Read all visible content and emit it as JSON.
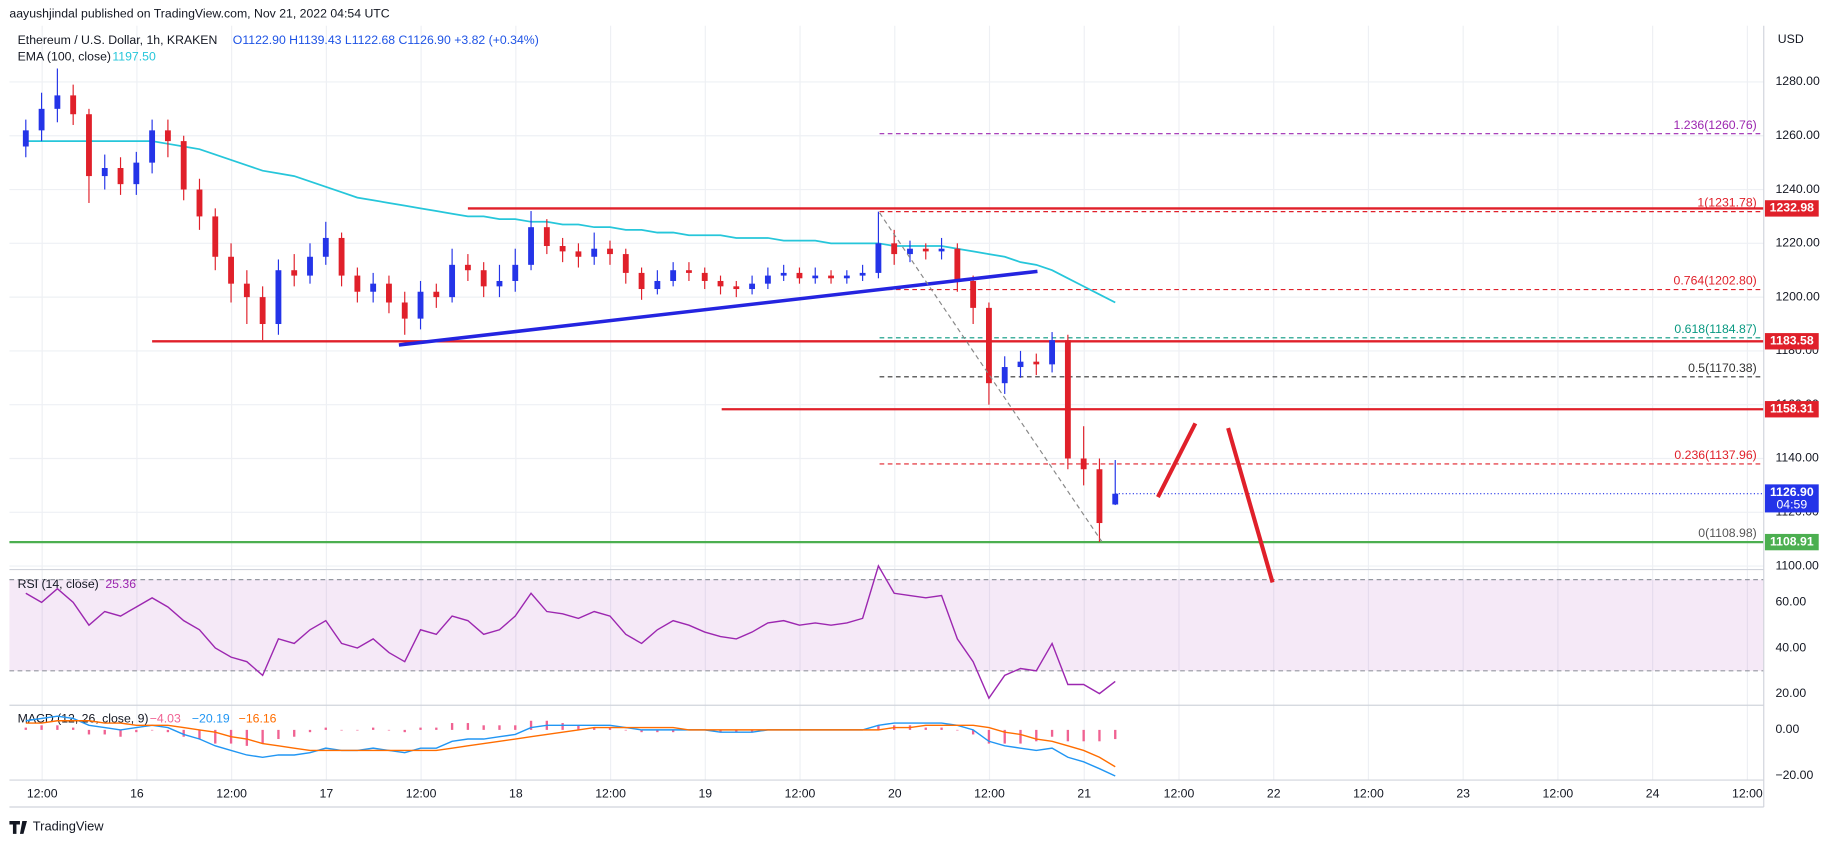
{
  "chart_data": {
    "type": "candlestick",
    "publisher": "aayushjindal published on TradingView.com, Nov 21, 2022 04:54 UTC",
    "symbol": "Ethereum / U.S. Dollar, 1h, KRAKEN",
    "ohlc_text": "O1122.90 H1139.43 L1122.68 C1126.90 +3.82 (+0.34%)",
    "currency": "USD",
    "footer": "TradingView",
    "up_color": "#2434e8",
    "down_color": "#e0202a",
    "categories": [
      "12:00",
      "16",
      "12:00",
      "17",
      "12:00",
      "18",
      "12:00",
      "19",
      "12:00",
      "20",
      "12:00",
      "21",
      "12:00",
      "22",
      "12:00",
      "23",
      "12:00",
      "24",
      "12:00"
    ],
    "ylim": [
      1098.7,
      1300.9
    ],
    "yticks": [
      {
        "value": 1280,
        "label": "1280.00"
      },
      {
        "value": 1260,
        "label": "1260.00"
      },
      {
        "value": 1240,
        "label": "1240.00"
      },
      {
        "value": 1220,
        "label": "1220.00"
      },
      {
        "value": 1200,
        "label": "1200.00"
      },
      {
        "value": 1180,
        "label": "1180.00"
      },
      {
        "value": 1160,
        "label": "1160.00"
      },
      {
        "value": 1140,
        "label": "1140.00"
      },
      {
        "value": 1120,
        "label": "1120.00"
      },
      {
        "value": 1100,
        "label": "1100.00"
      }
    ],
    "open": [
      1256,
      1262,
      1270,
      1275,
      1268,
      1245,
      1248,
      1242,
      1250,
      1262,
      1258,
      1240,
      1230,
      1215,
      1205,
      1200,
      1190,
      1210,
      1208,
      1215,
      1222,
      1208,
      1202,
      1205,
      1198,
      1192,
      1202,
      1200,
      1212,
      1210,
      1204,
      1206,
      1212,
      1226,
      1219,
      1217,
      1215,
      1218,
      1216,
      1209,
      1203,
      1206,
      1210,
      1209,
      1206,
      1204,
      1203,
      1205,
      1208,
      1209,
      1207,
      1208,
      1207,
      1208,
      1209,
      1220,
      1216,
      1218,
      1217,
      1218,
      1206,
      1196,
      1168,
      1174,
      1176,
      1175,
      1184,
      1140,
      1136,
      1122.9
    ],
    "high": [
      1266,
      1276,
      1285,
      1279,
      1270,
      1253,
      1252,
      1254,
      1266,
      1266,
      1260,
      1244,
      1233,
      1220,
      1210,
      1204,
      1214,
      1216,
      1220,
      1228,
      1224,
      1211,
      1209,
      1208,
      1202,
      1206,
      1205,
      1218,
      1216,
      1213,
      1212,
      1218,
      1232,
      1229,
      1222,
      1220,
      1224,
      1221,
      1218,
      1211,
      1210,
      1213,
      1213,
      1211,
      1208,
      1206,
      1208,
      1211,
      1212,
      1211,
      1211,
      1210,
      1210,
      1212,
      1231.78,
      1225,
      1221,
      1220,
      1222,
      1220,
      1208,
      1198,
      1178,
      1180,
      1179,
      1187,
      1186,
      1152,
      1140,
      1139.43
    ],
    "low": [
      1252,
      1258,
      1265,
      1264,
      1235,
      1240,
      1238,
      1238,
      1246,
      1252,
      1236,
      1225,
      1210,
      1198,
      1190,
      1184,
      1186,
      1204,
      1205,
      1212,
      1204,
      1198,
      1198,
      1194,
      1186,
      1188,
      1196,
      1198,
      1206,
      1200,
      1200,
      1202,
      1210,
      1216,
      1213,
      1211,
      1212,
      1212,
      1205,
      1199,
      1201,
      1204,
      1206,
      1203,
      1201,
      1200,
      1201,
      1203,
      1206,
      1205,
      1205,
      1205,
      1205,
      1206,
      1207,
      1212,
      1213,
      1214,
      1214,
      1202,
      1190,
      1160,
      1164,
      1170,
      1171,
      1172,
      1136,
      1130,
      1108.98,
      1122.68
    ],
    "close": [
      1262,
      1270,
      1275,
      1268,
      1245,
      1248,
      1242,
      1250,
      1262,
      1258,
      1240,
      1230,
      1215,
      1205,
      1200,
      1190,
      1210,
      1208,
      1215,
      1222,
      1208,
      1202,
      1205,
      1198,
      1192,
      1202,
      1200,
      1212,
      1210,
      1204,
      1206,
      1212,
      1226,
      1219,
      1217,
      1215,
      1218,
      1216,
      1209,
      1203,
      1206,
      1210,
      1209,
      1206,
      1204,
      1203,
      1205,
      1208,
      1209,
      1207,
      1208,
      1207,
      1208,
      1209,
      1220,
      1216,
      1218,
      1217,
      1218,
      1206,
      1196,
      1168,
      1174,
      1176,
      1175,
      1184,
      1140,
      1136,
      1116,
      1126.9
    ],
    "ema": {
      "name": "EMA (100, close)",
      "value_label": "1197.50",
      "color": "#26c6da",
      "values": [
        1258,
        1258,
        1258,
        1258,
        1258,
        1258,
        1258,
        1258,
        1258,
        1257,
        1256,
        1255,
        1253,
        1251,
        1249,
        1247,
        1246,
        1245,
        1243,
        1241,
        1239,
        1237,
        1236,
        1235,
        1234,
        1233,
        1232,
        1231,
        1230,
        1230,
        1229,
        1229,
        1228,
        1228,
        1227,
        1227,
        1226,
        1226,
        1225,
        1225,
        1224,
        1224,
        1223,
        1223,
        1223,
        1222,
        1222,
        1222,
        1221,
        1221,
        1221,
        1220,
        1220,
        1220,
        1220,
        1219,
        1219,
        1219,
        1219,
        1218,
        1217,
        1216,
        1215,
        1213,
        1212,
        1210,
        1207,
        1204,
        1201,
        1198
      ]
    },
    "current_price": {
      "value": 1126.9,
      "label": "1126.90",
      "countdown": "04:59"
    },
    "hlines": [
      {
        "value": 1232.98,
        "color": "#e0202a"
      },
      {
        "value": 1183.58,
        "color": "#e0202a"
      },
      {
        "value": 1158.31,
        "color": "#e0202a"
      },
      {
        "value": 1108.91,
        "color": "#4caf50"
      }
    ],
    "fib_levels": [
      {
        "value": 1260.76,
        "label": "1.236(1260.76)",
        "color": "#9c27b0"
      },
      {
        "value": 1231.78,
        "label": "1(1231.78)",
        "color": "#e0202a"
      },
      {
        "value": 1202.8,
        "label": "0.764(1202.80)",
        "color": "#e0202a"
      },
      {
        "value": 1184.87,
        "label": "0.618(1184.87)",
        "color": "#089981"
      },
      {
        "value": 1170.38,
        "label": "0.5(1170.38)",
        "color": "#333333"
      },
      {
        "value": 1137.96,
        "label": "0.236(1137.96)",
        "color": "#e0202a"
      },
      {
        "value": 1108.98,
        "label": "0(1108.98)",
        "color": "#555555"
      }
    ],
    "rsi": {
      "name": "RSI (14, close)",
      "value_label": "25.36",
      "color": "#9c27b0",
      "ylim": [
        14.9,
        74.4
      ],
      "bands": [
        70,
        30
      ],
      "yticks": [
        {
          "value": 60,
          "label": "60.00"
        },
        {
          "value": 40,
          "label": "40.00"
        },
        {
          "value": 20,
          "label": "20.00"
        }
      ],
      "values": [
        64,
        60,
        66,
        60,
        50,
        56,
        54,
        58,
        62,
        58,
        52,
        48,
        40,
        36,
        34,
        28,
        44,
        42,
        48,
        52,
        42,
        40,
        44,
        38,
        34,
        48,
        46,
        54,
        52,
        46,
        48,
        54,
        64,
        56,
        55,
        53,
        56,
        54,
        46,
        42,
        48,
        52,
        50,
        47,
        45,
        44,
        47,
        51,
        52,
        50,
        51,
        50,
        51,
        53,
        76,
        64,
        63,
        62,
        63,
        44,
        34,
        18,
        28,
        31,
        30,
        42,
        24,
        24,
        20,
        25.36
      ]
    },
    "macd": {
      "name": "MACD (12, 26, close, 9)",
      "hist_label": "−4.03",
      "macd_label": "−20.19",
      "signal_label": "−16.16",
      "ylim": [
        -22,
        10.8
      ],
      "yticks": [
        {
          "value": 0,
          "label": "0.00"
        },
        {
          "value": -20,
          "label": "−20.00"
        }
      ],
      "macd_line": {
        "color": "#2196f3",
        "values": [
          4,
          5,
          6,
          5,
          2,
          1,
          0,
          1,
          2,
          1,
          -2,
          -4,
          -7,
          -9,
          -11,
          -12,
          -11,
          -11,
          -10,
          -8,
          -9,
          -9,
          -8,
          -9,
          -10,
          -8,
          -8,
          -5,
          -4,
          -4,
          -3,
          -2,
          1,
          2,
          2,
          2,
          2,
          2,
          1,
          0,
          0,
          0,
          0,
          0,
          -1,
          -1,
          -1,
          0,
          0,
          0,
          0,
          0,
          0,
          0,
          2,
          3,
          3,
          3,
          3,
          2,
          0,
          -5,
          -7,
          -8,
          -9,
          -8,
          -12,
          -14,
          -17,
          -20.19
        ]
      },
      "signal_line": {
        "color": "#ff6d00",
        "values": [
          3,
          3,
          4,
          4,
          4,
          3,
          3,
          2,
          2,
          2,
          1,
          0,
          -1,
          -3,
          -4,
          -6,
          -7,
          -8,
          -9,
          -9,
          -9,
          -9,
          -9,
          -9,
          -9,
          -9,
          -9,
          -8,
          -7,
          -6,
          -5,
          -4,
          -3,
          -2,
          -1,
          0,
          1,
          1,
          1,
          1,
          1,
          1,
          0,
          0,
          0,
          0,
          0,
          0,
          0,
          0,
          0,
          0,
          0,
          0,
          0,
          1,
          1,
          2,
          2,
          2,
          2,
          1,
          -1,
          -2,
          -4,
          -5,
          -7,
          -9,
          -12,
          -16.16
        ]
      },
      "histogram": {
        "color": "#f06292",
        "values": [
          1,
          2,
          2,
          1,
          -2,
          -2,
          -3,
          -1,
          0,
          -1,
          -3,
          -4,
          -6,
          -6,
          -7,
          -6,
          -4,
          -3,
          -1,
          1,
          0,
          0,
          1,
          0,
          -1,
          1,
          1,
          3,
          3,
          2,
          2,
          2,
          4,
          4,
          3,
          2,
          1,
          1,
          0,
          -1,
          -1,
          -1,
          0,
          0,
          -1,
          -1,
          -1,
          0,
          0,
          0,
          0,
          0,
          0,
          0,
          2,
          2,
          2,
          1,
          1,
          0,
          -2,
          -6,
          -6,
          -6,
          -5,
          -3,
          -5,
          -5,
          -5,
          -4.03
        ]
      }
    }
  }
}
